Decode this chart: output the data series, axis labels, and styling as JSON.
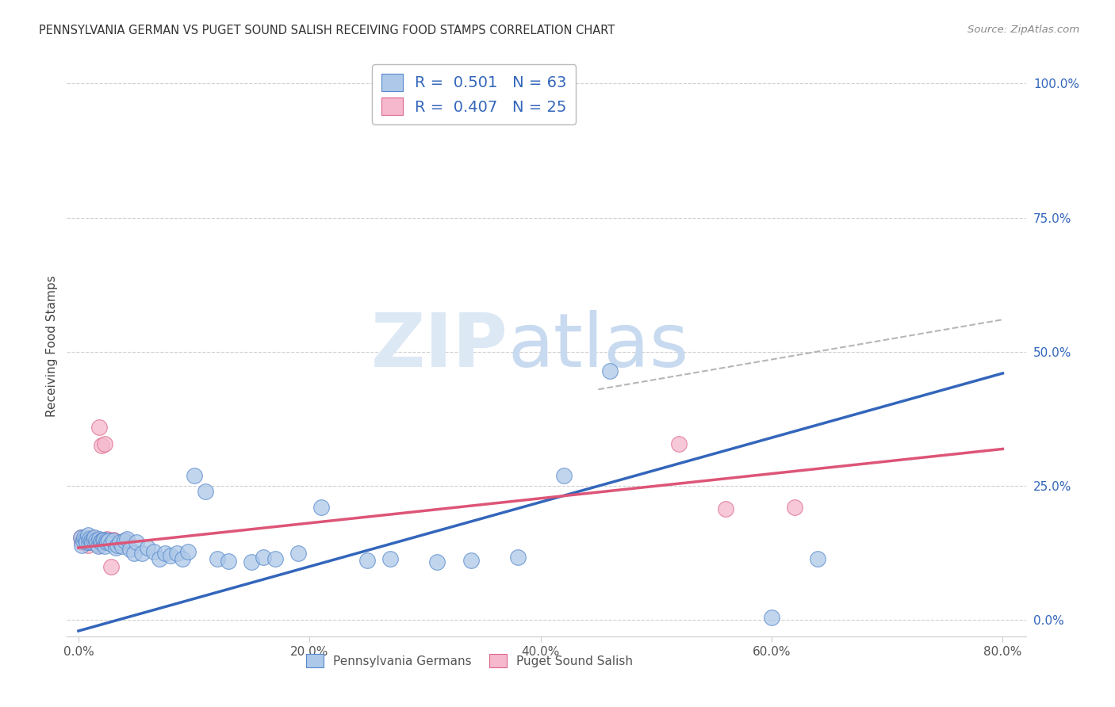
{
  "title": "PENNSYLVANIA GERMAN VS PUGET SOUND SALISH RECEIVING FOOD STAMPS CORRELATION CHART",
  "source": "Source: ZipAtlas.com",
  "ylabel": "Receiving Food Stamps",
  "blue_R": 0.501,
  "blue_N": 63,
  "pink_R": 0.407,
  "pink_N": 25,
  "blue_color": "#adc8e8",
  "blue_edge_color": "#5588cc",
  "blue_line_color": "#3366bb",
  "pink_color": "#f5b8cc",
  "pink_edge_color": "#dd6688",
  "pink_line_color": "#dd5577",
  "legend_label_blue": "Pennsylvania Germans",
  "legend_label_pink": "Puget Sound Salish",
  "blue_line_slope": 0.6,
  "blue_line_intercept": -0.02,
  "pink_line_slope": 0.23,
  "pink_line_intercept": 0.135,
  "blue_x": [
    0.002,
    0.003,
    0.004,
    0.005,
    0.006,
    0.007,
    0.008,
    0.009,
    0.01,
    0.011,
    0.012,
    0.013,
    0.014,
    0.015,
    0.016,
    0.017,
    0.018,
    0.019,
    0.02,
    0.021,
    0.022,
    0.023,
    0.024,
    0.025,
    0.026,
    0.028,
    0.03,
    0.032,
    0.034,
    0.036,
    0.038,
    0.04,
    0.042,
    0.045,
    0.048,
    0.05,
    0.055,
    0.06,
    0.065,
    0.07,
    0.075,
    0.08,
    0.085,
    0.09,
    0.095,
    0.1,
    0.11,
    0.12,
    0.13,
    0.15,
    0.16,
    0.17,
    0.19,
    0.21,
    0.25,
    0.27,
    0.31,
    0.34,
    0.38,
    0.42,
    0.46,
    0.6,
    0.64
  ],
  "blue_y": [
    0.155,
    0.14,
    0.148,
    0.155,
    0.15,
    0.145,
    0.158,
    0.145,
    0.152,
    0.148,
    0.145,
    0.15,
    0.155,
    0.148,
    0.142,
    0.138,
    0.152,
    0.145,
    0.148,
    0.15,
    0.15,
    0.138,
    0.148,
    0.145,
    0.148,
    0.142,
    0.148,
    0.135,
    0.14,
    0.145,
    0.138,
    0.148,
    0.152,
    0.132,
    0.125,
    0.145,
    0.125,
    0.135,
    0.128,
    0.115,
    0.125,
    0.12,
    0.125,
    0.115,
    0.128,
    0.27,
    0.24,
    0.115,
    0.11,
    0.108,
    0.118,
    0.115,
    0.125,
    0.21,
    0.112,
    0.115,
    0.108,
    0.112,
    0.118,
    0.27,
    0.465,
    0.005,
    0.115
  ],
  "pink_x": [
    0.002,
    0.003,
    0.005,
    0.006,
    0.007,
    0.008,
    0.01,
    0.012,
    0.014,
    0.016,
    0.018,
    0.02,
    0.022,
    0.025,
    0.028,
    0.03,
    0.035,
    0.04,
    0.018,
    0.02,
    0.023,
    0.028,
    0.52,
    0.56,
    0.62
  ],
  "pink_y": [
    0.155,
    0.145,
    0.148,
    0.152,
    0.145,
    0.14,
    0.145,
    0.155,
    0.148,
    0.145,
    0.14,
    0.148,
    0.145,
    0.152,
    0.148,
    0.15,
    0.14,
    0.148,
    0.36,
    0.325,
    0.328,
    0.1,
    0.328,
    0.208,
    0.21
  ],
  "watermark_zip": "ZIP",
  "watermark_atlas": "atlas",
  "background_color": "#ffffff",
  "grid_color": "#d0d0d0",
  "xlim": [
    -0.01,
    0.82
  ],
  "ylim": [
    -0.03,
    1.05
  ],
  "xticks": [
    0.0,
    0.2,
    0.4,
    0.6,
    0.8
  ],
  "yticks": [
    0.0,
    0.25,
    0.5,
    0.75,
    1.0
  ]
}
